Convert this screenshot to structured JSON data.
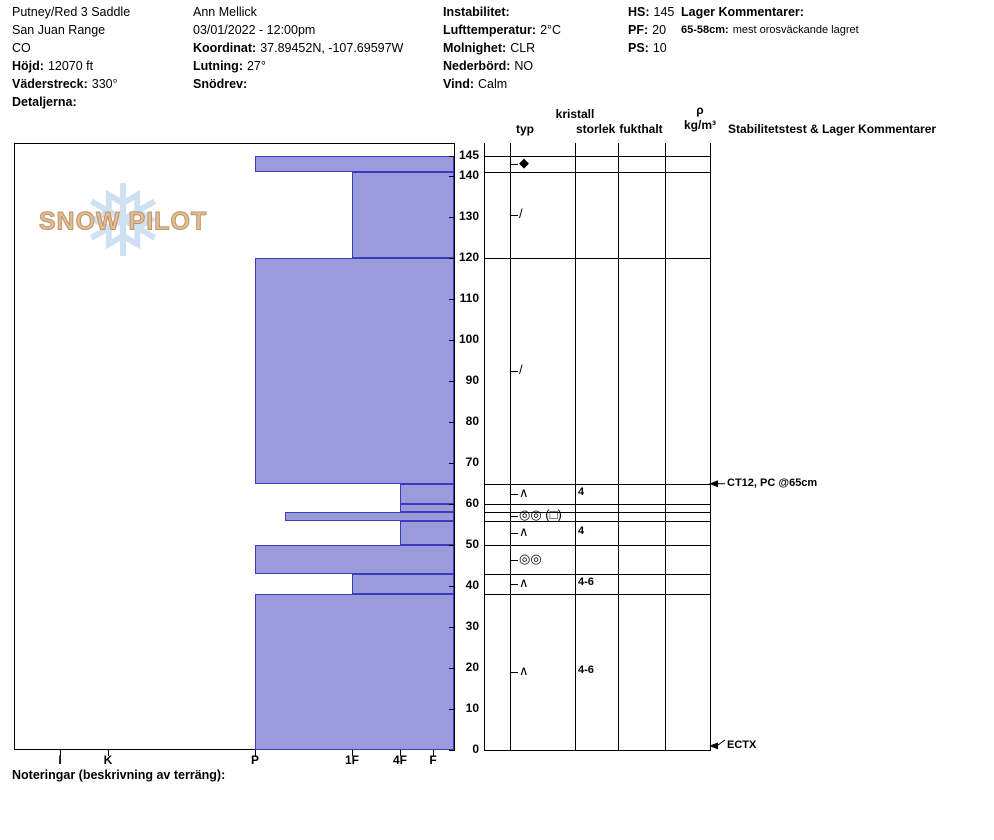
{
  "header": {
    "col1": {
      "title": "Putney/Red 3 Saddle",
      "range": "San Juan Range",
      "state": "CO",
      "elevation_label": "Höjd:",
      "elevation": "12070 ft",
      "aspect_label": "Väderstreck:",
      "aspect": "330°",
      "details_label": "Detaljerna:"
    },
    "col2": {
      "observer": "Ann Mellick",
      "datetime": "03/01/2022 - 12:00pm",
      "coord_label": "Koordinat:",
      "coord": "37.89452N, -107.69597W",
      "slope_label": "Lutning:",
      "slope": "27°",
      "drift_label": "Snödrev:"
    },
    "col3": {
      "instability_label": "Instabilitet:",
      "airtemp_label": "Lufttemperatur:",
      "airtemp": "2°C",
      "sky_label": "Molnighet:",
      "sky": "CLR",
      "precip_label": "Nederbörd:",
      "precip": "NO",
      "wind_label": "Vind:",
      "wind": "Calm"
    },
    "col4": {
      "hs_label": "HS:",
      "hs": "145",
      "pf_label": "PF:",
      "pf": "20",
      "ps_label": "PS:",
      "ps": "10"
    },
    "col5": {
      "layer_comments_label": "Lager Kommentarer:",
      "comment_depth": "65-58cm:",
      "comment_text": "mest orosväckande lagret"
    }
  },
  "logo": {
    "text": "SNOW PILOT",
    "flake_icon": "❅"
  },
  "chart_data": {
    "type": "snow-profile-bar",
    "title": "Snow pit hardness profile",
    "depth_unit": "cm",
    "ylim": [
      0,
      145
    ],
    "depth_ticks": [
      145,
      140,
      130,
      120,
      110,
      100,
      90,
      80,
      70,
      60,
      50,
      40,
      30,
      20,
      10,
      0
    ],
    "hardness_ticks": [
      "I",
      "K",
      "P",
      "1F",
      "4F",
      "F"
    ],
    "layers": [
      {
        "top": 145,
        "bottom": 141,
        "hardness": "P",
        "grain_glyph": "◆",
        "grain_name": "precipitation-particles",
        "size": ""
      },
      {
        "top": 141,
        "bottom": 120,
        "hardness": "1F",
        "grain_glyph": "/",
        "grain_name": "decomposing-fragments",
        "size": ""
      },
      {
        "top": 120,
        "bottom": 65,
        "hardness": "P",
        "grain_glyph": "/",
        "grain_name": "decomposing-fragments",
        "size": ""
      },
      {
        "top": 65,
        "bottom": 60,
        "hardness": "4F",
        "grain_glyph": "∧",
        "grain_name": "depth-hoar",
        "size": "4"
      },
      {
        "top": 60,
        "bottom": 58,
        "hardness": "4F",
        "grain_glyph": "",
        "grain_name": "",
        "size": ""
      },
      {
        "top": 58,
        "bottom": 56,
        "hardness": "P-",
        "grain_glyph": "◎◎ (□)",
        "grain_name": "rounds-facets-mixed",
        "size": ""
      },
      {
        "top": 56,
        "bottom": 50,
        "hardness": "4F",
        "grain_glyph": "∧",
        "grain_name": "depth-hoar",
        "size": "4"
      },
      {
        "top": 50,
        "bottom": 43,
        "hardness": "P",
        "grain_glyph": "◎◎",
        "grain_name": "rounds-cluster",
        "size": ""
      },
      {
        "top": 43,
        "bottom": 38,
        "hardness": "1F",
        "grain_glyph": "∧",
        "grain_name": "depth-hoar",
        "size": "4-6"
      },
      {
        "top": 38,
        "bottom": 0,
        "hardness": "P",
        "grain_glyph": "∧",
        "grain_name": "depth-hoar",
        "size": "4-6"
      }
    ],
    "column_headers": {
      "kristall": "kristall",
      "typ": "typ",
      "storlek": "storlek",
      "fukthalt": "fukthalt",
      "rho": "ρ",
      "rho_unit": "kg/m³",
      "stability": "Stabilitetstest & Lager Kommentarer"
    },
    "annotations": [
      {
        "depth": 65,
        "text": "CT12, PC @65cm"
      },
      {
        "depth": 1,
        "text": "ECTX"
      }
    ]
  },
  "footer": {
    "notes_label": "Noteringar (beskrivning av terräng):"
  },
  "colors": {
    "bar_fill": "#9b9bdc",
    "bar_border": "#3b3bc0",
    "snowflake": "#cfe0f2",
    "logo_text": "#e3bd93"
  }
}
